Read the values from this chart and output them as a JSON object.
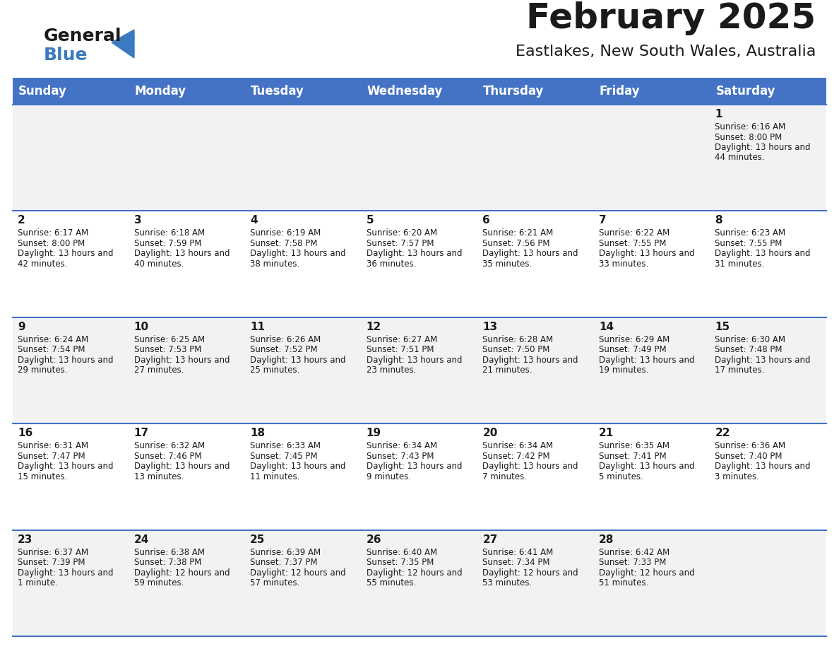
{
  "title": "February 2025",
  "subtitle": "Eastlakes, New South Wales, Australia",
  "header_bg": "#4472C4",
  "header_text": "#FFFFFF",
  "row_bg_odd": "#F2F2F2",
  "row_bg_even": "#FFFFFF",
  "border_color": "#4472C4",
  "day_headers": [
    "Sunday",
    "Monday",
    "Tuesday",
    "Wednesday",
    "Thursday",
    "Friday",
    "Saturday"
  ],
  "title_color": "#1a1a1a",
  "subtitle_color": "#1a1a1a",
  "day_number_color": "#1a1a1a",
  "info_color": "#1a1a1a",
  "calendar_data": [
    [
      null,
      null,
      null,
      null,
      null,
      null,
      {
        "day": 1,
        "sunrise": "6:16 AM",
        "sunset": "8:00 PM",
        "daylight": "13 hours and 44 minutes."
      }
    ],
    [
      {
        "day": 2,
        "sunrise": "6:17 AM",
        "sunset": "8:00 PM",
        "daylight": "13 hours and 42 minutes."
      },
      {
        "day": 3,
        "sunrise": "6:18 AM",
        "sunset": "7:59 PM",
        "daylight": "13 hours and 40 minutes."
      },
      {
        "day": 4,
        "sunrise": "6:19 AM",
        "sunset": "7:58 PM",
        "daylight": "13 hours and 38 minutes."
      },
      {
        "day": 5,
        "sunrise": "6:20 AM",
        "sunset": "7:57 PM",
        "daylight": "13 hours and 36 minutes."
      },
      {
        "day": 6,
        "sunrise": "6:21 AM",
        "sunset": "7:56 PM",
        "daylight": "13 hours and 35 minutes."
      },
      {
        "day": 7,
        "sunrise": "6:22 AM",
        "sunset": "7:55 PM",
        "daylight": "13 hours and 33 minutes."
      },
      {
        "day": 8,
        "sunrise": "6:23 AM",
        "sunset": "7:55 PM",
        "daylight": "13 hours and 31 minutes."
      }
    ],
    [
      {
        "day": 9,
        "sunrise": "6:24 AM",
        "sunset": "7:54 PM",
        "daylight": "13 hours and 29 minutes."
      },
      {
        "day": 10,
        "sunrise": "6:25 AM",
        "sunset": "7:53 PM",
        "daylight": "13 hours and 27 minutes."
      },
      {
        "day": 11,
        "sunrise": "6:26 AM",
        "sunset": "7:52 PM",
        "daylight": "13 hours and 25 minutes."
      },
      {
        "day": 12,
        "sunrise": "6:27 AM",
        "sunset": "7:51 PM",
        "daylight": "13 hours and 23 minutes."
      },
      {
        "day": 13,
        "sunrise": "6:28 AM",
        "sunset": "7:50 PM",
        "daylight": "13 hours and 21 minutes."
      },
      {
        "day": 14,
        "sunrise": "6:29 AM",
        "sunset": "7:49 PM",
        "daylight": "13 hours and 19 minutes."
      },
      {
        "day": 15,
        "sunrise": "6:30 AM",
        "sunset": "7:48 PM",
        "daylight": "13 hours and 17 minutes."
      }
    ],
    [
      {
        "day": 16,
        "sunrise": "6:31 AM",
        "sunset": "7:47 PM",
        "daylight": "13 hours and 15 minutes."
      },
      {
        "day": 17,
        "sunrise": "6:32 AM",
        "sunset": "7:46 PM",
        "daylight": "13 hours and 13 minutes."
      },
      {
        "day": 18,
        "sunrise": "6:33 AM",
        "sunset": "7:45 PM",
        "daylight": "13 hours and 11 minutes."
      },
      {
        "day": 19,
        "sunrise": "6:34 AM",
        "sunset": "7:43 PM",
        "daylight": "13 hours and 9 minutes."
      },
      {
        "day": 20,
        "sunrise": "6:34 AM",
        "sunset": "7:42 PM",
        "daylight": "13 hours and 7 minutes."
      },
      {
        "day": 21,
        "sunrise": "6:35 AM",
        "sunset": "7:41 PM",
        "daylight": "13 hours and 5 minutes."
      },
      {
        "day": 22,
        "sunrise": "6:36 AM",
        "sunset": "7:40 PM",
        "daylight": "13 hours and 3 minutes."
      }
    ],
    [
      {
        "day": 23,
        "sunrise": "6:37 AM",
        "sunset": "7:39 PM",
        "daylight": "13 hours and 1 minute."
      },
      {
        "day": 24,
        "sunrise": "6:38 AM",
        "sunset": "7:38 PM",
        "daylight": "12 hours and 59 minutes."
      },
      {
        "day": 25,
        "sunrise": "6:39 AM",
        "sunset": "7:37 PM",
        "daylight": "12 hours and 57 minutes."
      },
      {
        "day": 26,
        "sunrise": "6:40 AM",
        "sunset": "7:35 PM",
        "daylight": "12 hours and 55 minutes."
      },
      {
        "day": 27,
        "sunrise": "6:41 AM",
        "sunset": "7:34 PM",
        "daylight": "12 hours and 53 minutes."
      },
      {
        "day": 28,
        "sunrise": "6:42 AM",
        "sunset": "7:33 PM",
        "daylight": "12 hours and 51 minutes."
      },
      null
    ]
  ]
}
